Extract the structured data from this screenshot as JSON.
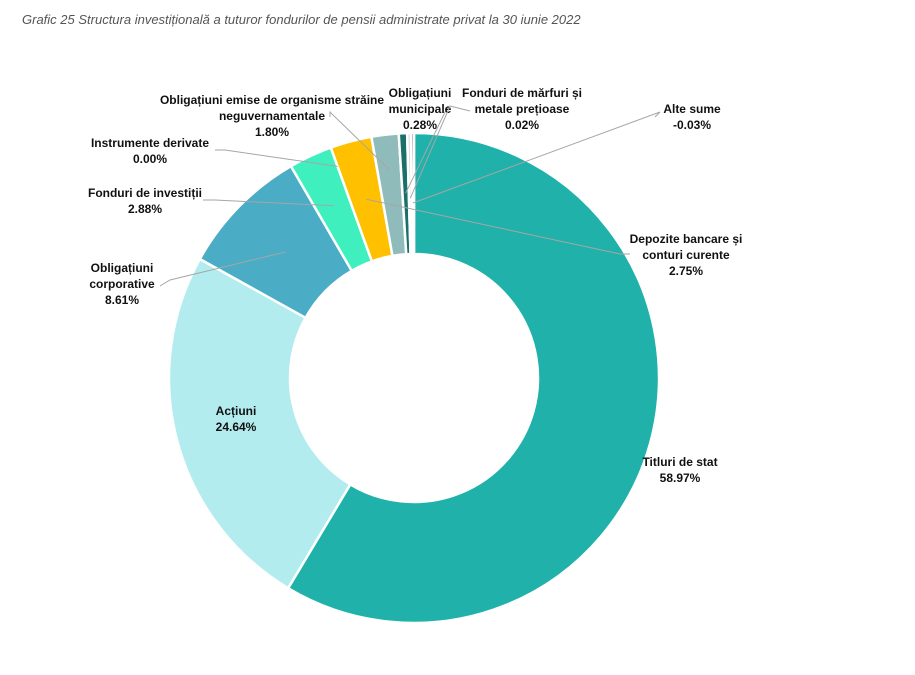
{
  "chart_data": {
    "type": "pie",
    "title": "Grafic 25 Structura investițională a tuturor fondurilor de pensii administrate privat la 30 iunie 2022",
    "donut": true,
    "slices": [
      {
        "name": "Titluri de stat",
        "value": 58.97,
        "label": "58.97%",
        "color": "#20b2aa"
      },
      {
        "name": "Acțiuni",
        "value": 24.64,
        "label": "24.64%",
        "color": "#b2ecee"
      },
      {
        "name": "Obligațiuni corporative",
        "value": 8.61,
        "label": "8.61%",
        "color": "#4bacc6"
      },
      {
        "name": "Fonduri de investiții",
        "value": 2.88,
        "label": "2.88%",
        "color": "#3ff0be"
      },
      {
        "name": "Instrumente derivate",
        "value": 0.0,
        "label": "0.00%",
        "color": "#9bbb59"
      },
      {
        "name": "Depozite bancare și conturi curente",
        "value": 2.75,
        "label": "2.75%",
        "color": "#ffc000"
      },
      {
        "name": "Obligațiuni emise de organisme străine neguvernamentale",
        "value": 1.8,
        "label": "1.80%",
        "color": "#8fbcbb"
      },
      {
        "name": "Obligațiuni municipale",
        "value": 0.28,
        "label": "0.28%",
        "color": "#1a6f6a"
      },
      {
        "name": "Fonduri de mărfuri și metale prețioase",
        "value": 0.02,
        "label": "0.02%",
        "color": "#d9d9d9"
      },
      {
        "name": "Alte sume",
        "value": -0.03,
        "label": "-0.03%",
        "color": "#7f7f7f"
      }
    ],
    "labels": {
      "Titluri de stat": [
        "Titluri de stat"
      ],
      "Acțiuni": [
        "Acțiuni"
      ],
      "Obligațiuni corporative": [
        "Obligațiuni",
        "corporative"
      ],
      "Fonduri de investiții": [
        "Fonduri de investiții"
      ],
      "Instrumente derivate": [
        "Instrumente derivate"
      ],
      "Depozite bancare și conturi curente": [
        "Depozite bancare și",
        "conturi curente"
      ],
      "Obligațiuni emise de organisme străine neguvernamentale": [
        "Obligațiuni emise de organisme străine",
        "neguvernamentale"
      ],
      "Obligațiuni municipale": [
        "Obligațiuni",
        "municipale"
      ],
      "Fonduri de mărfuri și metale prețioase": [
        "Fonduri de mărfuri și",
        "metale prețioase"
      ],
      "Alte sume": [
        "Alte sume"
      ]
    }
  }
}
